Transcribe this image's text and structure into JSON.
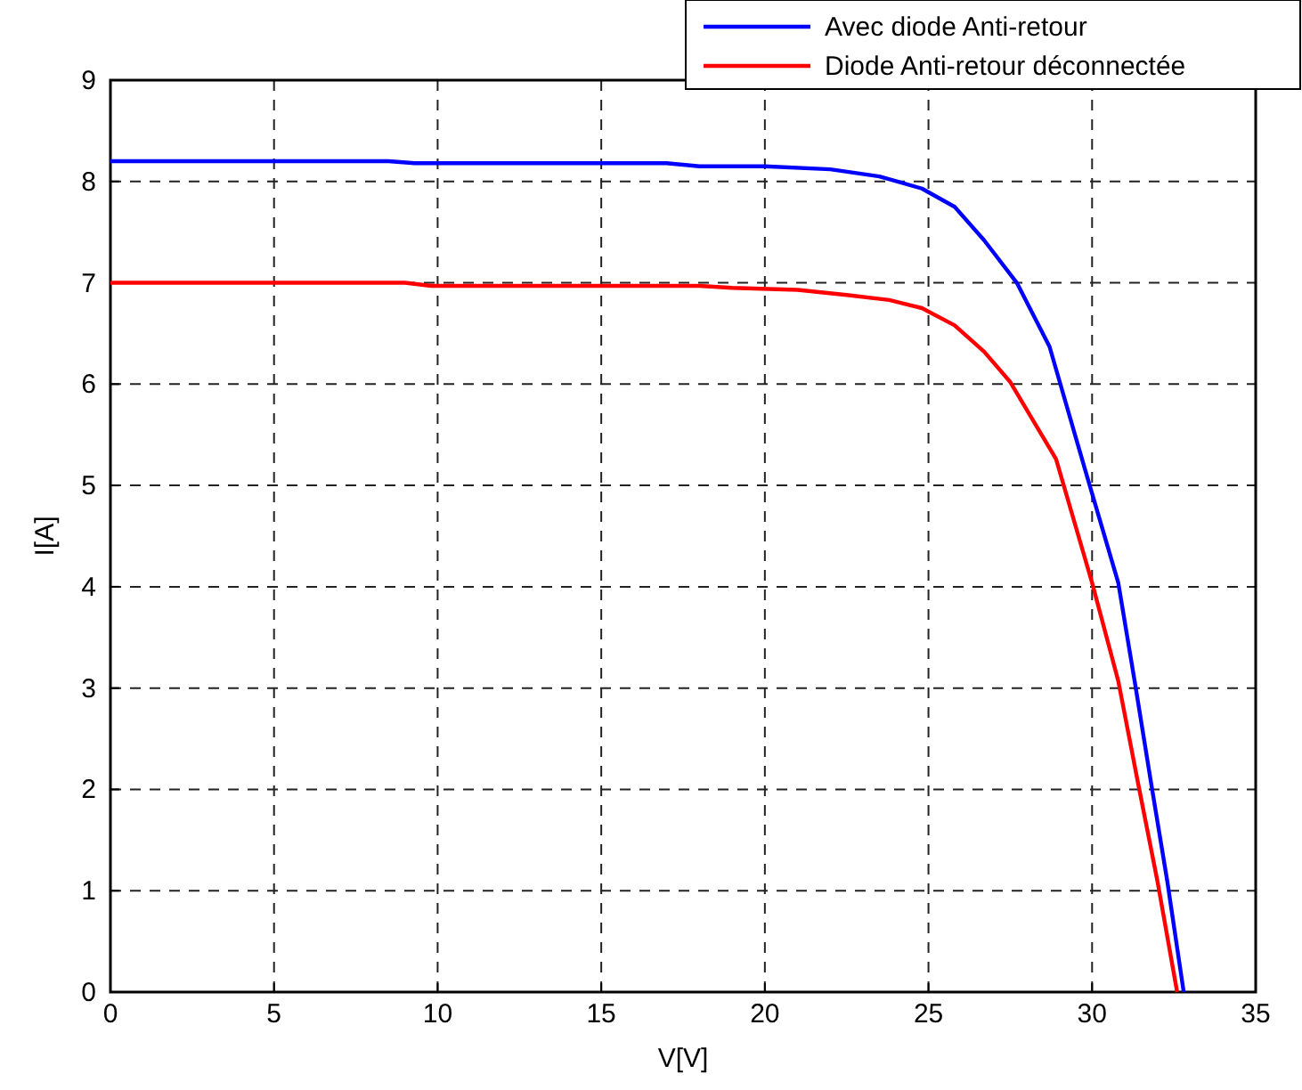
{
  "chart_data": {
    "type": "line",
    "xlabel": "V[V]",
    "ylabel": "I[A]",
    "xlim": [
      0,
      35
    ],
    "xticks": [
      0,
      5,
      10,
      15,
      20,
      25,
      30,
      35
    ],
    "ylim": [
      0,
      9
    ],
    "yticks": [
      0,
      1,
      2,
      3,
      4,
      5,
      6,
      7,
      8,
      9
    ],
    "grid": true,
    "legend": "top right",
    "line_style": "solid",
    "series": [
      {
        "name": "Avec diode Anti-retour",
        "color": "#0000ff",
        "x": [
          0,
          8.5,
          9.3,
          17,
          18,
          20,
          22,
          23.5,
          24.8,
          25.8,
          26.7,
          27.7,
          28.7,
          29.8,
          30.8,
          31.3,
          31.8,
          32.3,
          32.8
        ],
        "values": [
          8.2,
          8.2,
          8.18,
          8.18,
          8.15,
          8.15,
          8.12,
          8.05,
          7.93,
          7.75,
          7.42,
          7.0,
          6.37,
          5.14,
          4.04,
          3.07,
          2.07,
          1.09,
          0
        ]
      },
      {
        "name": "Diode Anti-retour déconnectée",
        "color": "#ff0000",
        "x": [
          0,
          9,
          9.8,
          18,
          19,
          21,
          22.5,
          23.8,
          24.8,
          25.8,
          26.7,
          27.5,
          28.9,
          30.0,
          30.8,
          31.4,
          32.0,
          32.6
        ],
        "values": [
          7.0,
          7.0,
          6.97,
          6.97,
          6.95,
          6.93,
          6.88,
          6.83,
          6.75,
          6.58,
          6.32,
          6.02,
          5.26,
          4.04,
          3.07,
          2.07,
          1.09,
          0
        ]
      }
    ]
  }
}
